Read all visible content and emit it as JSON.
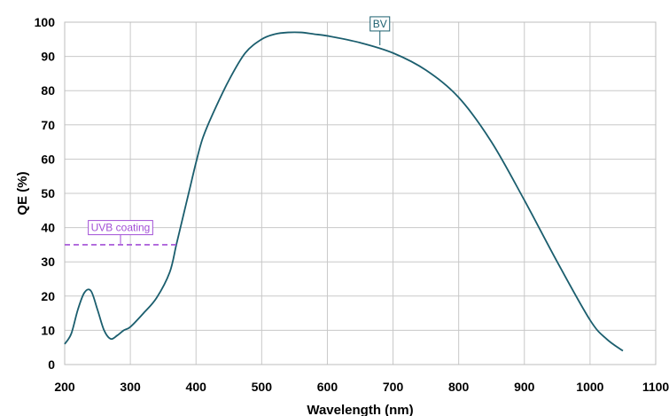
{
  "chart_data": {
    "type": "line",
    "xlabel": "Wavelength (nm)",
    "ylabel": "QE (%)",
    "xlim": [
      200,
      1100
    ],
    "ylim": [
      0,
      100
    ],
    "xticks": [
      200,
      300,
      400,
      500,
      600,
      700,
      800,
      900,
      1000,
      1100
    ],
    "yticks": [
      0,
      10,
      20,
      30,
      40,
      50,
      60,
      70,
      80,
      90,
      100
    ],
    "grid": true,
    "series": [
      {
        "name": "BV",
        "color": "#1b5e6e",
        "x": [
          200,
          210,
          220,
          230,
          240,
          250,
          260,
          270,
          280,
          290,
          300,
          320,
          340,
          360,
          370,
          380,
          390,
          400,
          410,
          425,
          450,
          475,
          500,
          520,
          540,
          560,
          580,
          600,
          650,
          700,
          750,
          800,
          850,
          900,
          950,
          1000,
          1025,
          1050
        ],
        "y": [
          6,
          9,
          16,
          21,
          21.5,
          16,
          10,
          7.5,
          8.5,
          10,
          11,
          15,
          19.5,
          27,
          35,
          43,
          51,
          59,
          66,
          73,
          83,
          91,
          95,
          96.5,
          97,
          97,
          96.5,
          96,
          94,
          91,
          86,
          78,
          65,
          48,
          30,
          13,
          7.5,
          4
        ]
      },
      {
        "name": "UVB coating",
        "color": "#a24fd6",
        "dashed": true,
        "x": [
          200,
          375
        ],
        "y": [
          35,
          35
        ]
      }
    ],
    "annotations": [
      {
        "text": "BV",
        "color": "#1b5e6e",
        "x": 680,
        "y": 93,
        "label_x": 680,
        "label_y": 99.5
      },
      {
        "text": "UVB coating",
        "color": "#a24fd6",
        "x": 285,
        "y": 35,
        "label_x": 285,
        "label_y": 40
      }
    ]
  }
}
